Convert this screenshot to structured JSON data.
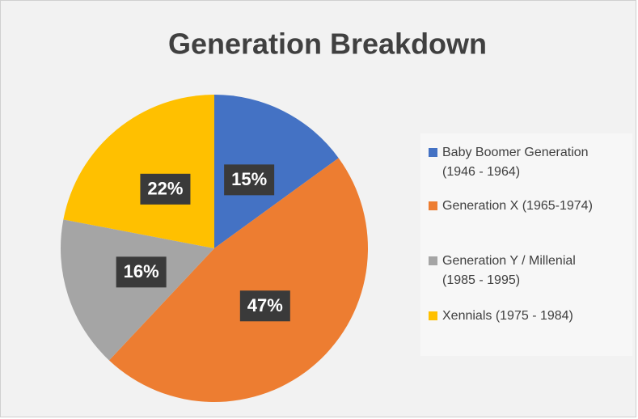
{
  "chart_data": {
    "type": "pie",
    "title": "Generation Breakdown",
    "categories": [
      "Baby Boomer Generation (1946 - 1964)",
      "Generation X (1965-1974)",
      "Generation Y / Millenial (1985 - 1995)",
      "Xennials (1975 - 1984)"
    ],
    "values": [
      15,
      47,
      16,
      22
    ],
    "value_labels": [
      "15%",
      "47%",
      "16%",
      "22%"
    ],
    "colors": [
      "#4472c4",
      "#ed7d31",
      "#a5a5a5",
      "#ffc000"
    ],
    "legend": "right"
  }
}
